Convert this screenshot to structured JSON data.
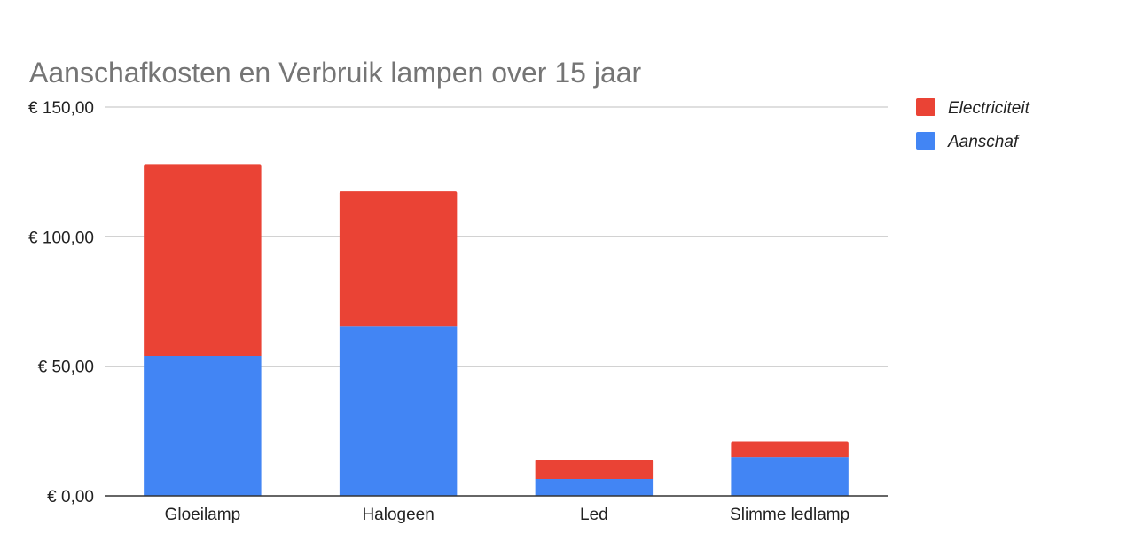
{
  "chart_data": {
    "type": "bar",
    "stacked": true,
    "title": "Aanschafkosten en Verbruik lampen over 15 jaar",
    "xlabel": "",
    "ylabel": "",
    "categories": [
      "Gloeilamp",
      "Halogeen",
      "Led",
      "Slimme ledlamp"
    ],
    "series": [
      {
        "name": "Aanschaf",
        "color": "#4285f4",
        "values": [
          54,
          65.5,
          6.5,
          15
        ]
      },
      {
        "name": "Electriciteit",
        "color": "#ea4335",
        "values": [
          74,
          52,
          7.5,
          6
        ]
      }
    ],
    "ylim": [
      0,
      150
    ],
    "yticks": [
      {
        "value": 0,
        "label": "€ 0,00"
      },
      {
        "value": 50,
        "label": "€ 50,00"
      },
      {
        "value": 100,
        "label": "€ 100,00"
      },
      {
        "value": 150,
        "label": "€ 150,00"
      }
    ],
    "grid": true,
    "legend_position": "right",
    "legend_order": [
      "Electriciteit",
      "Aanschaf"
    ]
  }
}
